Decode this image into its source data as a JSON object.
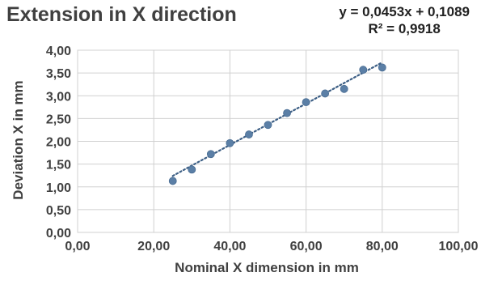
{
  "chart_data": {
    "type": "scatter",
    "title": "Extension in X direction",
    "xlabel": "Nominal X dimension in mm",
    "ylabel": "Deviation X in mm",
    "xlim": [
      0,
      100
    ],
    "ylim": [
      0,
      4
    ],
    "x_ticks": [
      "0,00",
      "20,00",
      "40,00",
      "60,00",
      "80,00",
      "100,00"
    ],
    "y_ticks": [
      "0,00",
      "0,50",
      "1,00",
      "1,50",
      "2,00",
      "2,50",
      "3,00",
      "3,50",
      "4,00"
    ],
    "grid": true,
    "series": [
      {
        "x": [
          25,
          30,
          35,
          40,
          45,
          50,
          55,
          60,
          65,
          70,
          75,
          80
        ],
        "y": [
          1.13,
          1.38,
          1.72,
          1.96,
          2.15,
          2.36,
          2.62,
          2.86,
          3.05,
          3.15,
          3.57,
          3.62
        ],
        "color": "#5b7fa6"
      }
    ],
    "trendline": {
      "slope": 0.0453,
      "intercept": 0.1089,
      "equation": "y = 0,0453x + 0,1089",
      "r_squared": "R² = 0,9918",
      "style": "dotted",
      "color": "#3d5f85"
    }
  }
}
